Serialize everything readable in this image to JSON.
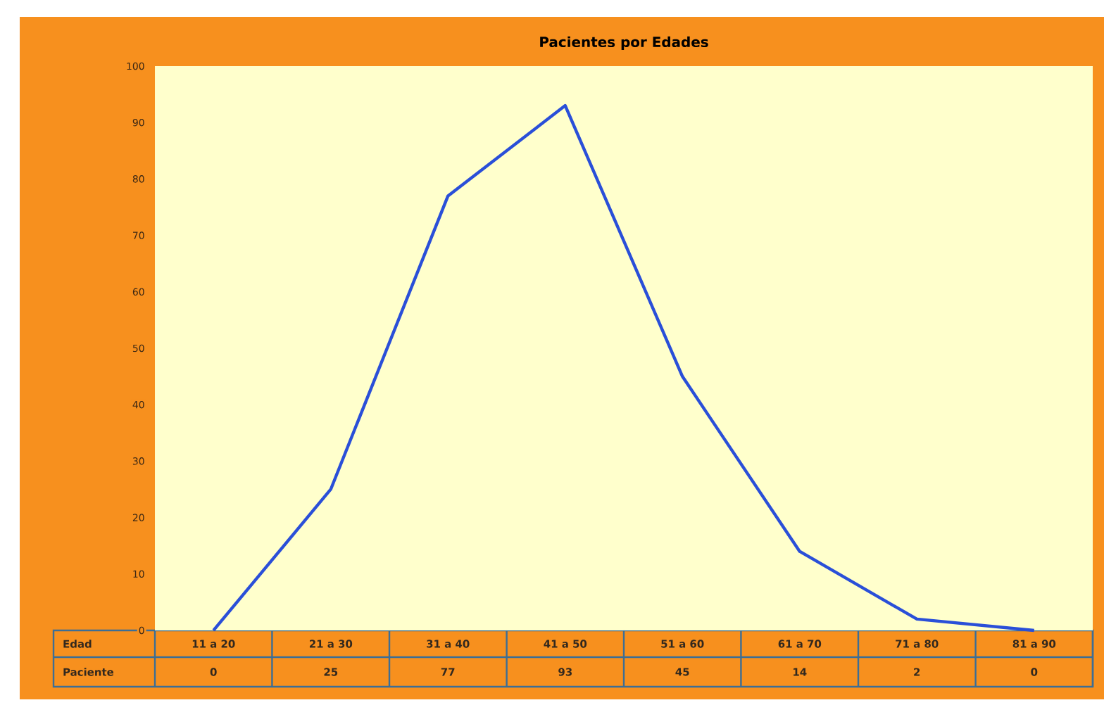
{
  "chart_data": {
    "type": "line",
    "title": "Pacientes por Edades",
    "xlabel": "Edad",
    "categories": [
      "11 a 20",
      "21 a 30",
      "31 a 40",
      "41 a 50",
      "51 a 60",
      "61 a 70",
      "71 a 80",
      "81 a 90"
    ],
    "series": [
      {
        "name": "Paciente",
        "color": "#2a4fd8",
        "values": [
          0,
          25,
          77,
          93,
          45,
          14,
          2,
          0
        ]
      }
    ],
    "ylim": [
      0,
      100
    ],
    "yticks": [
      0,
      10,
      20,
      30,
      40,
      50,
      60,
      70,
      80,
      90,
      100
    ],
    "data_labels": true,
    "marker": "none",
    "line_style": "solid"
  }
}
